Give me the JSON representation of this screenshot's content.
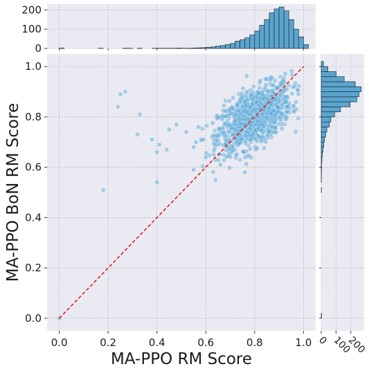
{
  "chart_data": {
    "type": "scatter",
    "xlabel": "MA-PPO RM Score",
    "ylabel": "MA-PPO BoN RM Score",
    "xlim": [
      -0.05,
      1.05
    ],
    "ylim": [
      -0.05,
      1.05
    ],
    "x_ticks": [
      "0.0",
      "0.2",
      "0.4",
      "0.6",
      "0.8",
      "1.0"
    ],
    "y_ticks": [
      "0.0",
      "0.2",
      "0.4",
      "0.6",
      "0.8",
      "1.0"
    ],
    "grid": true,
    "reference_line": {
      "from": [
        0,
        0
      ],
      "to": [
        1,
        1
      ],
      "style": "dashed",
      "color": "#e41a1c"
    },
    "points_cluster": {
      "center": [
        0.8,
        0.8
      ],
      "sd_x": 0.075,
      "sd_y": 0.065,
      "corr": 0.55,
      "count": 1100
    },
    "points_outliers": [
      [
        0.0,
        0.0
      ],
      [
        0.18,
        0.51
      ],
      [
        0.24,
        0.84
      ],
      [
        0.25,
        0.89
      ],
      [
        0.27,
        0.9
      ],
      [
        0.33,
        0.81
      ],
      [
        0.32,
        0.73
      ],
      [
        0.38,
        0.71
      ],
      [
        0.4,
        0.66
      ],
      [
        0.41,
        0.69
      ],
      [
        0.44,
        0.67
      ],
      [
        0.4,
        0.54
      ],
      [
        0.45,
        0.75
      ],
      [
        0.48,
        0.77
      ],
      [
        0.52,
        0.74
      ],
      [
        0.55,
        0.68
      ],
      [
        0.56,
        0.7
      ],
      [
        0.55,
        0.59
      ],
      [
        0.57,
        0.76
      ],
      [
        0.59,
        0.71
      ],
      [
        0.6,
        0.64
      ],
      [
        0.64,
        0.55
      ],
      [
        0.66,
        0.61
      ],
      [
        0.68,
        0.69
      ],
      [
        0.74,
        0.63
      ],
      [
        0.76,
        0.58
      ]
    ],
    "marginal_x": {
      "ylim": [
        0,
        230
      ],
      "ticks": [
        "0",
        "100",
        "200"
      ],
      "bins_start": 0.0,
      "bin_width": 0.02,
      "counts": [
        2,
        0,
        0,
        0,
        0,
        0,
        0,
        0,
        1,
        0,
        0,
        0,
        0,
        1,
        1,
        0,
        1,
        0,
        0,
        1,
        1,
        1,
        1,
        1,
        2,
        1,
        1,
        2,
        3,
        4,
        6,
        8,
        12,
        15,
        20,
        26,
        38,
        45,
        55,
        70,
        90,
        120,
        150,
        185,
        205,
        215,
        195,
        150,
        100,
        60,
        20
      ]
    },
    "marginal_y": {
      "xlim": [
        0,
        290
      ],
      "ticks": [
        "0",
        "100",
        "200"
      ],
      "bins_start": 0.0,
      "bin_width": 0.02,
      "counts": [
        2,
        0,
        0,
        0,
        0,
        0,
        0,
        0,
        0,
        0,
        0,
        0,
        0,
        0,
        0,
        0,
        0,
        0,
        0,
        0,
        0,
        0,
        0,
        0,
        0,
        1,
        0,
        1,
        1,
        2,
        2,
        4,
        8,
        12,
        17,
        22,
        30,
        38,
        55,
        65,
        90,
        130,
        195,
        240,
        255,
        270,
        230,
        155,
        100,
        45,
        15
      ]
    },
    "colors": {
      "point": "#5aa9d6",
      "bar": "#5aa5cf",
      "bar_edge": "#1e2a36",
      "panel_bg": "#eaeaf2",
      "grid": "#b0b0b0"
    }
  }
}
